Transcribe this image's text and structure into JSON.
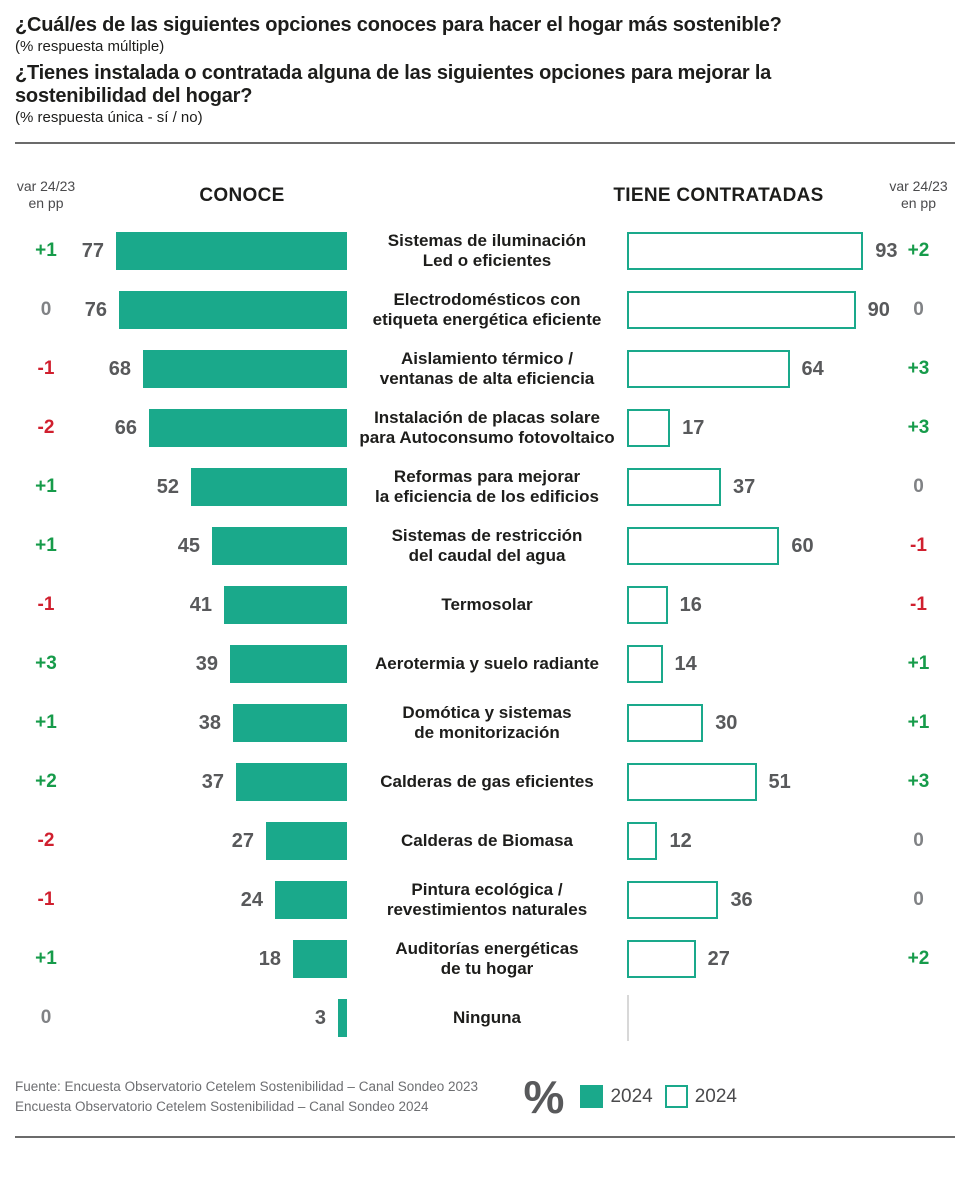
{
  "colors": {
    "teal": "#1AA98B",
    "positive": "#169B4A",
    "negative": "#D01F2E",
    "neutral_zero": "#808285",
    "value_text": "#58595B"
  },
  "header": {
    "q1": "¿Cuál/es de las siguientes opciones conoces para hacer el hogar más sostenible?",
    "q1_sub": "(% respuesta múltiple)",
    "q2": "¿Tienes instalada o contratada alguna de las siguientes opciones para mejorar la\nsostenibilidad del hogar?",
    "q2_sub": "(% respuesta única - sí / no)"
  },
  "chart": {
    "var_header": "var 24/23\nen pp",
    "left_header": "CONOCE",
    "right_header": "TIENE CONTRATADAS"
  },
  "chart_data": {
    "type": "bar",
    "orientation": "horizontal-diverging",
    "value_range": [
      0,
      100
    ],
    "unit": "%",
    "categories": [
      "Sistemas de iluminación\nLed o eficientes",
      "Electrodomésticos con\netiqueta energética eficiente",
      "Aislamiento térmico /\nventanas de alta eficiencia",
      "Instalación de placas solare\npara Autoconsumo fotovoltaico",
      "Reformas para mejorar\nla eficiencia de los edificios",
      "Sistemas de restricción\ndel caudal del agua",
      "Termosolar",
      "Aerotermia y suelo radiante",
      "Domótica y sistemas\nde monitorización",
      "Calderas de gas eficientes",
      "Calderas de Biomasa",
      "Pintura ecológica /\nrevestimientos naturales",
      "Auditorías energéticas\nde tu hogar",
      "Ninguna"
    ],
    "series": [
      {
        "name": "CONOCE 2024",
        "style": "filled",
        "values": [
          77,
          76,
          68,
          66,
          52,
          45,
          41,
          39,
          38,
          37,
          27,
          24,
          18,
          3
        ],
        "var_24_23_pp": [
          "+1",
          "0",
          "-1",
          "-2",
          "+1",
          "+1",
          "-1",
          "+3",
          "+1",
          "+2",
          "-2",
          "-1",
          "+1",
          "0"
        ]
      },
      {
        "name": "TIENE CONTRATADAS 2024",
        "style": "outline",
        "values": [
          93,
          90,
          64,
          17,
          37,
          60,
          16,
          14,
          30,
          51,
          12,
          36,
          27,
          null
        ],
        "var_24_23_pp": [
          "+2",
          "0",
          "+3",
          "+3",
          "0",
          "-1",
          "-1",
          "+1",
          "+1",
          "+3",
          "0",
          "0",
          "+2",
          null
        ]
      }
    ]
  },
  "footer": {
    "source_line1": "Fuente: Encuesta Observatorio Cetelem Sostenibilidad – Canal Sondeo 2023",
    "source_line2": "Encuesta Observatorio Cetelem Sostenibilidad – Canal Sondeo 2024",
    "legend": {
      "percent_symbol": "%",
      "items": [
        {
          "label": "2024",
          "style": "filled"
        },
        {
          "label": "2024",
          "style": "outline"
        }
      ]
    }
  }
}
